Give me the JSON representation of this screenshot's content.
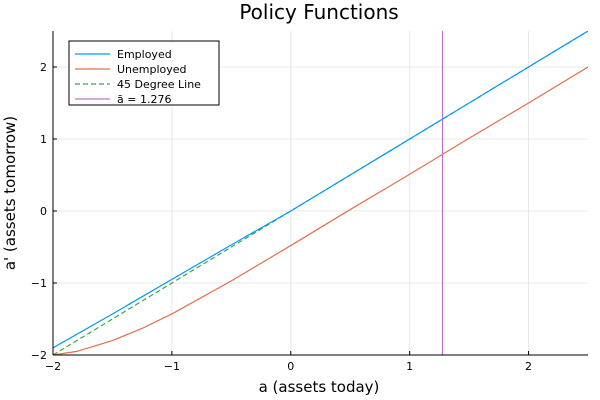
{
  "chart_data": {
    "type": "line",
    "title": "Policy Functions",
    "xlabel": "a (assets today)",
    "ylabel": "a' (assets tomorrow)",
    "xlim": [
      -2,
      2.5
    ],
    "ylim": [
      -2,
      2.5
    ],
    "xticks": [
      -2,
      -1,
      0,
      1,
      2
    ],
    "yticks": [
      -2,
      -1,
      0,
      1,
      2
    ],
    "xtick_labels": [
      "−2",
      "−1",
      "0",
      "1",
      "2"
    ],
    "ytick_labels": [
      "−2",
      "−1",
      "0",
      "1",
      "2"
    ],
    "grid": true,
    "legend_position": "top-left",
    "series": [
      {
        "name": "Employed",
        "color": "#009AFA",
        "style": "solid",
        "x": [
          -2,
          -1.5,
          -1,
          -0.5,
          0,
          0.5,
          1,
          1.5,
          2,
          2.5
        ],
        "y": [
          -1.9,
          -1.43,
          -0.95,
          -0.47,
          0.0,
          0.5,
          1.0,
          1.5,
          2.0,
          2.5
        ]
      },
      {
        "name": "Unemployed",
        "color": "#E36F47",
        "style": "solid",
        "x": [
          -2,
          -1.8,
          -1.5,
          -1.25,
          -1,
          -0.5,
          0,
          0.5,
          1,
          1.5,
          2,
          2.5
        ],
        "y": [
          -2.0,
          -1.95,
          -1.8,
          -1.63,
          -1.43,
          -0.97,
          -0.48,
          0.02,
          0.51,
          1.01,
          1.5,
          2.0
        ]
      },
      {
        "name": "45 Degree Line",
        "color": "#3EA44E",
        "style": "dashed",
        "x": [
          -2,
          2.5
        ],
        "y": [
          -2,
          2.5
        ]
      },
      {
        "name": "ā = 1.276",
        "color": "#C271D2",
        "style": "solid",
        "vertical": true,
        "x": [
          1.276,
          1.276
        ],
        "y": [
          -2,
          2.5
        ]
      }
    ]
  }
}
